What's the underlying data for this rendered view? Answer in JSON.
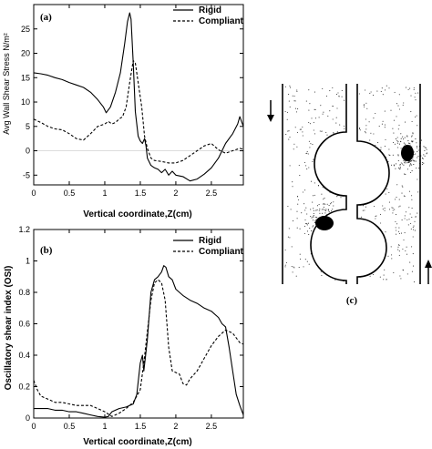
{
  "chart_data": [
    {
      "type": "line",
      "panel_label": "(a)",
      "xlabel": "Vertical coordinate,Z(cm)",
      "ylabel": "Avg Wall Shear Stress N/m²",
      "xlim": [
        0,
        2.95
      ],
      "ylim": [
        -7,
        30
      ],
      "xticks": [
        0,
        0.5,
        1,
        1.5,
        2,
        2.5
      ],
      "xtick_labels": [
        "0",
        "0.5",
        "1",
        "1.5",
        "2",
        "2.5"
      ],
      "yticks": [
        -5,
        0,
        5,
        10,
        15,
        20,
        25
      ],
      "ytick_labels": [
        "-5",
        "0",
        "5",
        "10",
        "15",
        "20",
        "25"
      ],
      "zero_line": true,
      "legend_position": "top-right",
      "series": [
        {
          "name": "Rigid",
          "style": "solid",
          "x": [
            0,
            0.1,
            0.2,
            0.3,
            0.4,
            0.5,
            0.6,
            0.7,
            0.8,
            0.9,
            0.98,
            1.02,
            1.08,
            1.15,
            1.22,
            1.28,
            1.32,
            1.35,
            1.37,
            1.4,
            1.43,
            1.47,
            1.5,
            1.53,
            1.56,
            1.58,
            1.6,
            1.65,
            1.7,
            1.75,
            1.8,
            1.85,
            1.9,
            1.95,
            2.0,
            2.1,
            2.2,
            2.3,
            2.4,
            2.5,
            2.6,
            2.7,
            2.8,
            2.87,
            2.9,
            2.95
          ],
          "y": [
            16,
            15.8,
            15.5,
            15,
            14.6,
            14,
            13.5,
            13,
            12,
            10.5,
            9,
            7.8,
            9,
            12,
            16,
            22,
            26.5,
            28.3,
            27,
            18,
            8,
            3,
            2,
            1.5,
            2.5,
            1,
            -1.5,
            -3,
            -3.5,
            -3.8,
            -4.5,
            -3.8,
            -5,
            -4.2,
            -5,
            -5.3,
            -6.2,
            -5.8,
            -4.8,
            -3.5,
            -1.5,
            1.5,
            3.5,
            5.5,
            7,
            5
          ]
        },
        {
          "name": "Compliant",
          "style": "dashed",
          "x": [
            0,
            0.1,
            0.2,
            0.3,
            0.4,
            0.5,
            0.6,
            0.7,
            0.8,
            0.9,
            1.0,
            1.05,
            1.1,
            1.15,
            1.2,
            1.25,
            1.3,
            1.35,
            1.4,
            1.43,
            1.47,
            1.52,
            1.56,
            1.6,
            1.65,
            1.7,
            1.8,
            1.9,
            2.0,
            2.1,
            2.2,
            2.3,
            2.4,
            2.5,
            2.6,
            2.7,
            2.8,
            2.9,
            2.95
          ],
          "y": [
            6.5,
            5.8,
            5,
            4.5,
            4.3,
            3.5,
            2.5,
            2.2,
            3.5,
            5,
            5.5,
            6,
            5.5,
            5.8,
            6.5,
            7,
            9,
            14,
            18.5,
            18,
            14,
            9,
            3,
            0.5,
            -1.5,
            -2,
            -2.2,
            -2.5,
            -2.5,
            -2,
            -1,
            0,
            1,
            1.5,
            0.2,
            -0.5,
            0,
            0.5,
            0.3
          ]
        }
      ]
    },
    {
      "type": "line",
      "panel_label": "(b)",
      "xlabel": "Vertical coordinate,Z(cm)",
      "ylabel": "Oscillatory shear index (OSI)",
      "xlim": [
        0,
        2.95
      ],
      "ylim": [
        0,
        1.2
      ],
      "xticks": [
        0,
        0.5,
        1,
        1.5,
        2,
        2.5
      ],
      "xtick_labels": [
        "0",
        "0.5",
        "1",
        "1.5",
        "2",
        "2.5"
      ],
      "yticks": [
        0,
        0.2,
        0.4,
        0.6,
        0.8,
        1,
        1.2
      ],
      "ytick_labels": [
        "0",
        "0.2",
        "0.4",
        "0.6",
        "0.8",
        "1",
        "1.2"
      ],
      "legend_position": "top-right",
      "series": [
        {
          "name": "Rigid",
          "style": "solid",
          "x": [
            0,
            0.1,
            0.2,
            0.3,
            0.4,
            0.5,
            0.6,
            0.7,
            0.8,
            0.9,
            1.0,
            1.05,
            1.1,
            1.2,
            1.3,
            1.4,
            1.45,
            1.5,
            1.53,
            1.55,
            1.57,
            1.6,
            1.65,
            1.7,
            1.75,
            1.8,
            1.83,
            1.86,
            1.9,
            1.95,
            2.0,
            2.1,
            2.2,
            2.3,
            2.4,
            2.5,
            2.6,
            2.65,
            2.7,
            2.75,
            2.8,
            2.85,
            2.9,
            2.95
          ],
          "y": [
            0.06,
            0.06,
            0.06,
            0.05,
            0.05,
            0.04,
            0.04,
            0.03,
            0.02,
            0.01,
            0.005,
            0.01,
            0.04,
            0.06,
            0.07,
            0.09,
            0.15,
            0.35,
            0.4,
            0.3,
            0.38,
            0.5,
            0.8,
            0.88,
            0.9,
            0.93,
            0.97,
            0.96,
            0.9,
            0.88,
            0.82,
            0.78,
            0.75,
            0.73,
            0.7,
            0.68,
            0.64,
            0.6,
            0.58,
            0.45,
            0.3,
            0.15,
            0.08,
            0.02
          ]
        },
        {
          "name": "Compliant",
          "style": "dashed",
          "x": [
            0,
            0.05,
            0.1,
            0.2,
            0.3,
            0.4,
            0.5,
            0.6,
            0.7,
            0.8,
            0.9,
            1.0,
            1.1,
            1.2,
            1.3,
            1.4,
            1.5,
            1.55,
            1.6,
            1.65,
            1.7,
            1.75,
            1.8,
            1.85,
            1.9,
            1.95,
            2.0,
            2.05,
            2.1,
            2.15,
            2.2,
            2.3,
            2.4,
            2.5,
            2.6,
            2.7,
            2.8,
            2.9,
            2.95
          ],
          "y": [
            0.24,
            0.18,
            0.14,
            0.12,
            0.1,
            0.1,
            0.09,
            0.08,
            0.08,
            0.08,
            0.06,
            0.04,
            0.01,
            0.03,
            0.06,
            0.1,
            0.18,
            0.35,
            0.55,
            0.75,
            0.86,
            0.88,
            0.86,
            0.75,
            0.45,
            0.3,
            0.29,
            0.28,
            0.22,
            0.21,
            0.25,
            0.3,
            0.38,
            0.46,
            0.52,
            0.56,
            0.54,
            0.48,
            0.47
          ]
        }
      ]
    }
  ],
  "diagram": {
    "label": "(c)"
  }
}
